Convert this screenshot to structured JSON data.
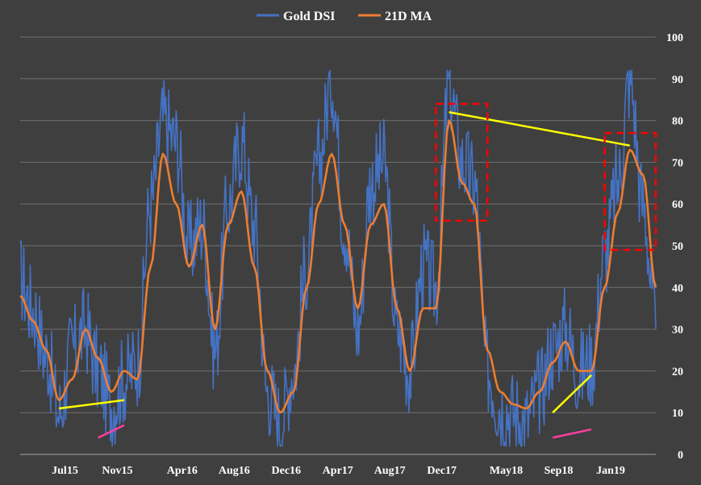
{
  "chart_data": {
    "type": "line",
    "title": "",
    "xlabel": "",
    "ylabel": "",
    "ylim": [
      0,
      100
    ],
    "y_ticks": [
      "0",
      "10",
      "20",
      "30",
      "40",
      "50",
      "60",
      "70",
      "80",
      "90",
      "100"
    ],
    "y_axis_side": "right",
    "x_ticks": [
      "Jul15",
      "Nov15",
      "Apr16",
      "Aug16",
      "Dec16",
      "Apr17",
      "Aug17",
      "Dec17",
      "May18",
      "Sep18",
      "Jan19"
    ],
    "grid": "horizontal",
    "legend_position": "top-center",
    "series": [
      {
        "name": "Gold DSI",
        "color": "#4472c4",
        "x": [
          "2015-04",
          "2015-05",
          "2015-06",
          "2015-07",
          "2015-08",
          "2015-09",
          "2015-10",
          "2015-11",
          "2015-12",
          "2016-01",
          "2016-02",
          "2016-03",
          "2016-04",
          "2016-05",
          "2016-06",
          "2016-07",
          "2016-08",
          "2016-09",
          "2016-10",
          "2016-11",
          "2016-12",
          "2017-01",
          "2017-02",
          "2017-03",
          "2017-04",
          "2017-05",
          "2017-06",
          "2017-07",
          "2017-08",
          "2017-09",
          "2017-10",
          "2017-11",
          "2017-12",
          "2018-01",
          "2018-02",
          "2018-03",
          "2018-04",
          "2018-05",
          "2018-06",
          "2018-07",
          "2018-08",
          "2018-09",
          "2018-10",
          "2018-11",
          "2018-12",
          "2019-01",
          "2019-02",
          "2019-03",
          "2019-04",
          "2019-05"
        ],
        "values": [
          42,
          35,
          24,
          10,
          25,
          30,
          20,
          12,
          18,
          22,
          60,
          80,
          75,
          50,
          55,
          25,
          60,
          75,
          55,
          15,
          8,
          20,
          45,
          70,
          90,
          55,
          30,
          65,
          70,
          30,
          20,
          45,
          40,
          88,
          70,
          65,
          20,
          12,
          10,
          8,
          15,
          25,
          30,
          20,
          22,
          48,
          65,
          90,
          60,
          30
        ]
      },
      {
        "name": "21D MA",
        "color": "#ed7d31",
        "x": [
          "2015-04",
          "2015-05",
          "2015-06",
          "2015-07",
          "2015-08",
          "2015-09",
          "2015-10",
          "2015-11",
          "2015-12",
          "2016-01",
          "2016-02",
          "2016-03",
          "2016-04",
          "2016-05",
          "2016-06",
          "2016-07",
          "2016-08",
          "2016-09",
          "2016-10",
          "2016-11",
          "2016-12",
          "2017-01",
          "2017-02",
          "2017-03",
          "2017-04",
          "2017-05",
          "2017-06",
          "2017-07",
          "2017-08",
          "2017-09",
          "2017-10",
          "2017-11",
          "2017-12",
          "2018-01",
          "2018-02",
          "2018-03",
          "2018-04",
          "2018-05",
          "2018-06",
          "2018-07",
          "2018-08",
          "2018-09",
          "2018-10",
          "2018-11",
          "2018-12",
          "2019-01",
          "2019-02",
          "2019-03",
          "2019-04",
          "2019-05"
        ],
        "values": [
          38,
          32,
          25,
          13,
          18,
          30,
          23,
          15,
          20,
          18,
          45,
          72,
          60,
          45,
          55,
          30,
          55,
          63,
          45,
          20,
          10,
          15,
          40,
          60,
          72,
          55,
          35,
          55,
          60,
          35,
          20,
          35,
          35,
          80,
          65,
          60,
          25,
          15,
          12,
          11,
          15,
          22,
          27,
          20,
          20,
          40,
          58,
          73,
          67,
          40
        ]
      }
    ],
    "annotations": [
      {
        "type": "trendline",
        "color": "#ffff00",
        "from": [
          "2015-07",
          11
        ],
        "to": [
          "2015-12",
          13
        ]
      },
      {
        "type": "trendline",
        "color": "#ff3f9f",
        "from": [
          "2015-10",
          4
        ],
        "to": [
          "2015-12",
          7
        ]
      },
      {
        "type": "trendline",
        "color": "#ffff00",
        "from": [
          "2018-01",
          82
        ],
        "to": [
          "2019-03",
          74
        ]
      },
      {
        "type": "trendline",
        "color": "#ffff00",
        "from": [
          "2018-09",
          10
        ],
        "to": [
          "2018-12",
          19
        ]
      },
      {
        "type": "trendline",
        "color": "#ff3f9f",
        "from": [
          "2018-09",
          4
        ],
        "to": [
          "2018-12",
          6
        ]
      },
      {
        "type": "dashed-box",
        "color": "#ff0000",
        "x_range": [
          "2017-12",
          "2018-04"
        ],
        "y_range": [
          56,
          84
        ]
      },
      {
        "type": "dashed-box",
        "color": "#ff0000",
        "x_range": [
          "2019-01",
          "2019-05"
        ],
        "y_range": [
          49,
          77
        ]
      }
    ]
  }
}
